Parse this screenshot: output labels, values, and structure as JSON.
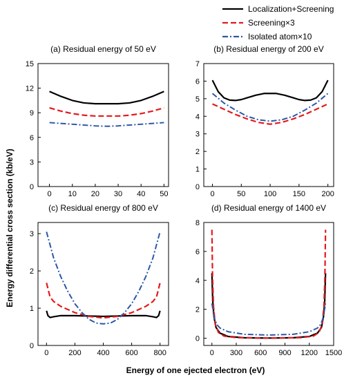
{
  "figure": {
    "ylabel": "Energy differential cross section (kb/eV)",
    "xlabel": "Energy of one ejected electron (eV)"
  },
  "legend": [
    {
      "label": "Localization+Screening",
      "color": "#000000",
      "dash": "solid"
    },
    {
      "label": "Screening×3",
      "color": "#e31a1c",
      "dash": "dashed"
    },
    {
      "label": "Isolated atom×10",
      "color": "#2b57a7",
      "dash": "dashdot"
    }
  ],
  "chart_data": [
    {
      "type": "line",
      "title": "(a) Residual energy of 50 eV",
      "xlim": [
        -5,
        52
      ],
      "ylim": [
        0,
        15
      ],
      "xticks": [
        0,
        10,
        20,
        30,
        40,
        50
      ],
      "yticks": [
        0,
        3,
        6,
        9,
        12,
        15
      ],
      "series": [
        {
          "name": "Localization+Screening",
          "x": [
            0,
            5,
            10,
            15,
            20,
            25,
            30,
            35,
            40,
            45,
            50
          ],
          "values": [
            11.6,
            11.0,
            10.5,
            10.2,
            10.1,
            10.1,
            10.1,
            10.2,
            10.5,
            11.0,
            11.6
          ]
        },
        {
          "name": "Screening×3",
          "x": [
            0,
            5,
            10,
            15,
            20,
            25,
            30,
            35,
            40,
            45,
            50
          ],
          "values": [
            9.6,
            9.2,
            8.9,
            8.7,
            8.6,
            8.6,
            8.6,
            8.7,
            8.9,
            9.2,
            9.6
          ]
        },
        {
          "name": "Isolated atom×10",
          "x": [
            0,
            5,
            10,
            15,
            20,
            25,
            30,
            35,
            40,
            45,
            50
          ],
          "values": [
            7.8,
            7.7,
            7.6,
            7.5,
            7.4,
            7.35,
            7.4,
            7.5,
            7.6,
            7.7,
            7.8
          ]
        }
      ]
    },
    {
      "type": "line",
      "title": "(b) Residual energy of 200 eV",
      "xlim": [
        -15,
        210
      ],
      "ylim": [
        0,
        7
      ],
      "xticks": [
        0,
        50,
        100,
        150,
        200
      ],
      "yticks": [
        0,
        1,
        2,
        3,
        4,
        5,
        6,
        7
      ],
      "series": [
        {
          "name": "Localization+Screening",
          "x": [
            0,
            10,
            20,
            30,
            40,
            50,
            60,
            75,
            90,
            100,
            110,
            125,
            140,
            150,
            160,
            170,
            180,
            190,
            200
          ],
          "values": [
            6.05,
            5.4,
            5.05,
            4.92,
            4.9,
            4.95,
            5.05,
            5.2,
            5.3,
            5.3,
            5.3,
            5.2,
            5.05,
            4.95,
            4.9,
            4.92,
            5.05,
            5.4,
            6.05
          ]
        },
        {
          "name": "Screening×3",
          "x": [
            0,
            20,
            40,
            60,
            80,
            100,
            120,
            140,
            160,
            180,
            200
          ],
          "values": [
            4.7,
            4.4,
            4.1,
            3.85,
            3.65,
            3.55,
            3.65,
            3.85,
            4.1,
            4.4,
            4.7
          ]
        },
        {
          "name": "Isolated atom×10",
          "x": [
            0,
            20,
            40,
            60,
            80,
            100,
            120,
            140,
            160,
            180,
            200
          ],
          "values": [
            5.3,
            4.75,
            4.35,
            4.0,
            3.8,
            3.72,
            3.8,
            4.0,
            4.35,
            4.75,
            5.3
          ]
        }
      ]
    },
    {
      "type": "line",
      "title": "(c) Residual energy of 800 eV",
      "xlim": [
        -60,
        860
      ],
      "ylim": [
        0,
        3.3
      ],
      "xticks": [
        0,
        200,
        400,
        600,
        800
      ],
      "yticks": [
        0,
        1,
        2,
        3
      ],
      "series": [
        {
          "name": "Localization+Screening",
          "x": [
            0,
            10,
            25,
            50,
            100,
            200,
            300,
            400,
            500,
            600,
            700,
            750,
            775,
            790,
            800
          ],
          "values": [
            0.93,
            0.8,
            0.75,
            0.77,
            0.8,
            0.8,
            0.79,
            0.78,
            0.79,
            0.8,
            0.8,
            0.77,
            0.75,
            0.8,
            0.93
          ]
        },
        {
          "name": "Screening×3",
          "x": [
            0,
            25,
            50,
            100,
            200,
            300,
            400,
            500,
            600,
            700,
            750,
            775,
            800
          ],
          "values": [
            1.68,
            1.3,
            1.18,
            1.05,
            0.88,
            0.78,
            0.74,
            0.78,
            0.88,
            1.05,
            1.18,
            1.3,
            1.68
          ]
        },
        {
          "name": "Isolated atom×10",
          "x": [
            0,
            50,
            100,
            150,
            200,
            250,
            300,
            350,
            400,
            450,
            500,
            550,
            600,
            650,
            700,
            750,
            800
          ],
          "values": [
            3.05,
            2.35,
            1.85,
            1.45,
            1.12,
            0.88,
            0.7,
            0.6,
            0.58,
            0.6,
            0.7,
            0.88,
            1.12,
            1.45,
            1.85,
            2.35,
            3.05
          ]
        }
      ]
    },
    {
      "type": "line",
      "title": "(d) Residual energy of 1400 eV",
      "xlim": [
        -100,
        1500
      ],
      "ylim": [
        -0.5,
        8
      ],
      "xticks": [
        0,
        300,
        600,
        900,
        1200,
        1500
      ],
      "yticks": [
        0,
        2,
        4,
        6,
        8
      ],
      "series": [
        {
          "name": "Localization+Screening",
          "x": [
            0,
            10,
            25,
            50,
            100,
            200,
            400,
            700,
            1000,
            1200,
            1300,
            1350,
            1375,
            1390,
            1400
          ],
          "values": [
            4.5,
            2.6,
            1.5,
            0.75,
            0.35,
            0.12,
            0.03,
            0.01,
            0.03,
            0.12,
            0.35,
            0.75,
            1.5,
            2.6,
            4.5
          ]
        },
        {
          "name": "Screening×3",
          "x": [
            0,
            8,
            20,
            40,
            80,
            150,
            300,
            700,
            1100,
            1250,
            1320,
            1360,
            1380,
            1392,
            1400
          ],
          "values": [
            7.5,
            4.2,
            2.2,
            1.0,
            0.4,
            0.15,
            0.04,
            0.01,
            0.04,
            0.15,
            0.4,
            1.0,
            2.2,
            4.2,
            7.5
          ]
        },
        {
          "name": "Isolated atom×10",
          "x": [
            0,
            15,
            30,
            60,
            100,
            200,
            400,
            700,
            1000,
            1200,
            1300,
            1340,
            1370,
            1385,
            1400
          ],
          "values": [
            2.4,
            1.9,
            1.4,
            0.95,
            0.7,
            0.45,
            0.27,
            0.22,
            0.27,
            0.45,
            0.7,
            0.95,
            1.4,
            1.9,
            2.4
          ]
        }
      ]
    }
  ]
}
